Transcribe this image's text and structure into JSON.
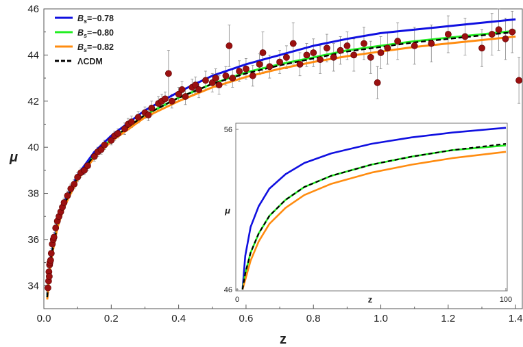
{
  "chart_data": [
    {
      "type": "scatter",
      "xlabel": "z",
      "ylabel": "μ",
      "xlim": [
        0,
        1.42
      ],
      "ylim": [
        33,
        46
      ],
      "x_ticks": [
        "0.0",
        "0.2",
        "0.4",
        "0.6",
        "0.8",
        "1.0",
        "1.2",
        "1.4"
      ],
      "y_ticks": [
        "34",
        "36",
        "38",
        "40",
        "42",
        "44",
        "46"
      ],
      "legend_position": "top-left",
      "legend": [
        {
          "prefix": "B",
          "sub": "s",
          "value": "=−0.78",
          "color": "#1010e0",
          "dashed": false
        },
        {
          "prefix": "B",
          "sub": "s",
          "value": "=−0.80",
          "color": "#22ee22",
          "dashed": false
        },
        {
          "prefix": "B",
          "sub": "s",
          "value": "=−0.82",
          "color": "#ff8c10",
          "dashed": false
        },
        {
          "prefix": "ΛCDM",
          "sub": "",
          "value": "",
          "color": "#000000",
          "dashed": true
        }
      ],
      "series": [
        {
          "name": "Bs=−0.78",
          "color": "#1010e0",
          "z": [
            0.01,
            0.02,
            0.04,
            0.06,
            0.1,
            0.15,
            0.2,
            0.3,
            0.4,
            0.5,
            0.6,
            0.7,
            0.8,
            0.9,
            1.0,
            1.1,
            1.2,
            1.3,
            1.4
          ],
          "mu": [
            33.6,
            35.2,
            36.7,
            37.6,
            38.8,
            39.8,
            40.5,
            41.6,
            42.4,
            43.1,
            43.6,
            44.0,
            44.4,
            44.7,
            44.95,
            45.1,
            45.25,
            45.4,
            45.55
          ]
        },
        {
          "name": "Bs=−0.80",
          "color": "#22ee22",
          "z": [
            0.01,
            0.02,
            0.04,
            0.06,
            0.1,
            0.15,
            0.2,
            0.3,
            0.4,
            0.5,
            0.6,
            0.7,
            0.8,
            0.9,
            1.0,
            1.1,
            1.2,
            1.3,
            1.4
          ],
          "mu": [
            33.5,
            35.1,
            36.6,
            37.5,
            38.7,
            39.65,
            40.35,
            41.4,
            42.15,
            42.75,
            43.25,
            43.6,
            43.9,
            44.2,
            44.4,
            44.6,
            44.75,
            44.9,
            45.05
          ]
        },
        {
          "name": "Bs=−0.82",
          "color": "#ff8c10",
          "z": [
            0.01,
            0.02,
            0.04,
            0.06,
            0.1,
            0.15,
            0.2,
            0.3,
            0.4,
            0.5,
            0.6,
            0.7,
            0.8,
            0.9,
            1.0,
            1.1,
            1.2,
            1.3,
            1.4
          ],
          "mu": [
            33.4,
            35.0,
            36.5,
            37.4,
            38.6,
            39.55,
            40.25,
            41.3,
            42.0,
            42.6,
            43.05,
            43.4,
            43.7,
            43.95,
            44.15,
            44.35,
            44.5,
            44.65,
            44.8
          ]
        },
        {
          "name": "ΛCDM",
          "color": "#000000",
          "dashed": true,
          "z": [
            0.01,
            0.02,
            0.04,
            0.06,
            0.1,
            0.15,
            0.2,
            0.3,
            0.4,
            0.5,
            0.6,
            0.7,
            0.8,
            0.9,
            1.0,
            1.1,
            1.2,
            1.3,
            1.4
          ],
          "mu": [
            33.5,
            35.1,
            36.6,
            37.5,
            38.7,
            39.65,
            40.35,
            41.4,
            42.15,
            42.75,
            43.2,
            43.55,
            43.85,
            44.15,
            44.35,
            44.55,
            44.7,
            44.85,
            45.0
          ]
        }
      ],
      "points": {
        "color": "#9b1010",
        "errorbar_color": "#888888",
        "z": [
          0.012,
          0.014,
          0.015,
          0.016,
          0.017,
          0.018,
          0.02,
          0.022,
          0.025,
          0.028,
          0.03,
          0.035,
          0.04,
          0.045,
          0.05,
          0.055,
          0.06,
          0.07,
          0.08,
          0.09,
          0.1,
          0.11,
          0.12,
          0.13,
          0.15,
          0.16,
          0.17,
          0.18,
          0.2,
          0.21,
          0.22,
          0.24,
          0.25,
          0.26,
          0.28,
          0.3,
          0.31,
          0.32,
          0.34,
          0.35,
          0.36,
          0.37,
          0.38,
          0.4,
          0.41,
          0.42,
          0.44,
          0.45,
          0.46,
          0.48,
          0.5,
          0.51,
          0.52,
          0.54,
          0.55,
          0.56,
          0.58,
          0.6,
          0.62,
          0.64,
          0.65,
          0.67,
          0.7,
          0.72,
          0.74,
          0.76,
          0.78,
          0.8,
          0.82,
          0.84,
          0.86,
          0.88,
          0.9,
          0.92,
          0.95,
          0.97,
          0.99,
          1.0,
          1.02,
          1.05,
          1.1,
          1.15,
          1.2,
          1.25,
          1.3,
          1.33,
          1.35,
          1.37,
          1.39,
          1.41
        ],
        "mu": [
          33.9,
          34.2,
          34.6,
          34.4,
          34.9,
          35.0,
          35.1,
          35.4,
          35.8,
          36.0,
          36.1,
          36.5,
          36.8,
          37.0,
          37.2,
          37.4,
          37.6,
          37.9,
          38.2,
          38.4,
          38.7,
          38.9,
          39.0,
          39.2,
          39.6,
          39.8,
          39.9,
          40.1,
          40.3,
          40.5,
          40.6,
          40.8,
          41.0,
          41.1,
          41.3,
          41.5,
          41.4,
          41.7,
          41.9,
          42.0,
          42.1,
          43.2,
          42.0,
          42.3,
          42.5,
          42.2,
          42.6,
          42.7,
          42.5,
          42.9,
          42.8,
          43.0,
          42.7,
          43.1,
          44.4,
          43.0,
          43.3,
          43.4,
          43.1,
          43.6,
          44.1,
          43.5,
          43.7,
          43.9,
          44.5,
          43.6,
          44.0,
          44.1,
          43.8,
          44.3,
          43.9,
          44.2,
          44.4,
          44.0,
          44.5,
          43.9,
          42.8,
          44.1,
          44.3,
          44.6,
          44.4,
          44.5,
          44.9,
          44.8,
          44.3,
          44.9,
          45.1,
          44.7,
          45.0,
          42.9
        ],
        "err": [
          0.2,
          0.2,
          0.2,
          0.2,
          0.2,
          0.2,
          0.2,
          0.2,
          0.2,
          0.2,
          0.2,
          0.2,
          0.2,
          0.2,
          0.2,
          0.2,
          0.2,
          0.2,
          0.2,
          0.2,
          0.2,
          0.2,
          0.2,
          0.2,
          0.2,
          0.2,
          0.2,
          0.2,
          0.2,
          0.2,
          0.2,
          0.25,
          0.25,
          0.25,
          0.25,
          0.25,
          0.25,
          0.3,
          0.3,
          0.3,
          0.3,
          1.0,
          0.3,
          0.3,
          0.35,
          0.35,
          0.35,
          0.35,
          0.35,
          0.4,
          0.4,
          0.4,
          0.4,
          0.4,
          0.9,
          0.4,
          0.45,
          0.45,
          0.45,
          0.45,
          0.9,
          0.5,
          0.5,
          0.5,
          0.9,
          0.5,
          0.5,
          0.6,
          0.6,
          0.6,
          0.6,
          0.6,
          0.6,
          0.7,
          0.7,
          0.7,
          0.7,
          0.7,
          0.7,
          0.8,
          0.8,
          0.8,
          0.8,
          0.8,
          0.8,
          0.9,
          0.9,
          0.9,
          0.9,
          1.0
        ]
      }
    },
    {
      "type": "line",
      "xlabel": "z",
      "ylabel": "μ",
      "xlim": [
        0,
        100
      ],
      "ylim": [
        46,
        56
      ],
      "x_ticks": [
        "0",
        "100"
      ],
      "y_ticks": [
        "46",
        "56"
      ],
      "series": [
        {
          "name": "Bs=−0.78",
          "color": "#1010e0",
          "z": [
            2,
            3,
            5,
            8,
            12,
            18,
            25,
            35,
            50,
            65,
            80,
            100
          ],
          "mu": [
            46.0,
            48.1,
            49.9,
            51.2,
            52.3,
            53.2,
            53.9,
            54.5,
            55.1,
            55.5,
            55.8,
            56.1
          ]
        },
        {
          "name": "Bs=−0.80",
          "color": "#22ee22",
          "z": [
            2,
            3,
            5,
            8,
            12,
            18,
            25,
            35,
            50,
            65,
            80,
            100
          ],
          "mu": [
            46.0,
            47.0,
            48.3,
            49.5,
            50.6,
            51.6,
            52.4,
            53.1,
            53.8,
            54.3,
            54.7,
            55.0
          ]
        },
        {
          "name": "Bs=−0.82",
          "color": "#ff8c10",
          "z": [
            2,
            3,
            5,
            8,
            12,
            18,
            25,
            35,
            50,
            65,
            80,
            100
          ],
          "mu": [
            46.0,
            46.6,
            47.8,
            49.0,
            50.1,
            51.1,
            51.9,
            52.6,
            53.3,
            53.8,
            54.2,
            54.6
          ]
        },
        {
          "name": "ΛCDM",
          "color": "#000000",
          "dashed": true,
          "z": [
            2,
            3,
            5,
            8,
            12,
            18,
            25,
            35,
            50,
            65,
            80,
            100
          ],
          "mu": [
            46.0,
            47.0,
            48.3,
            49.5,
            50.6,
            51.6,
            52.4,
            53.1,
            53.8,
            54.3,
            54.7,
            55.1
          ]
        }
      ]
    }
  ]
}
